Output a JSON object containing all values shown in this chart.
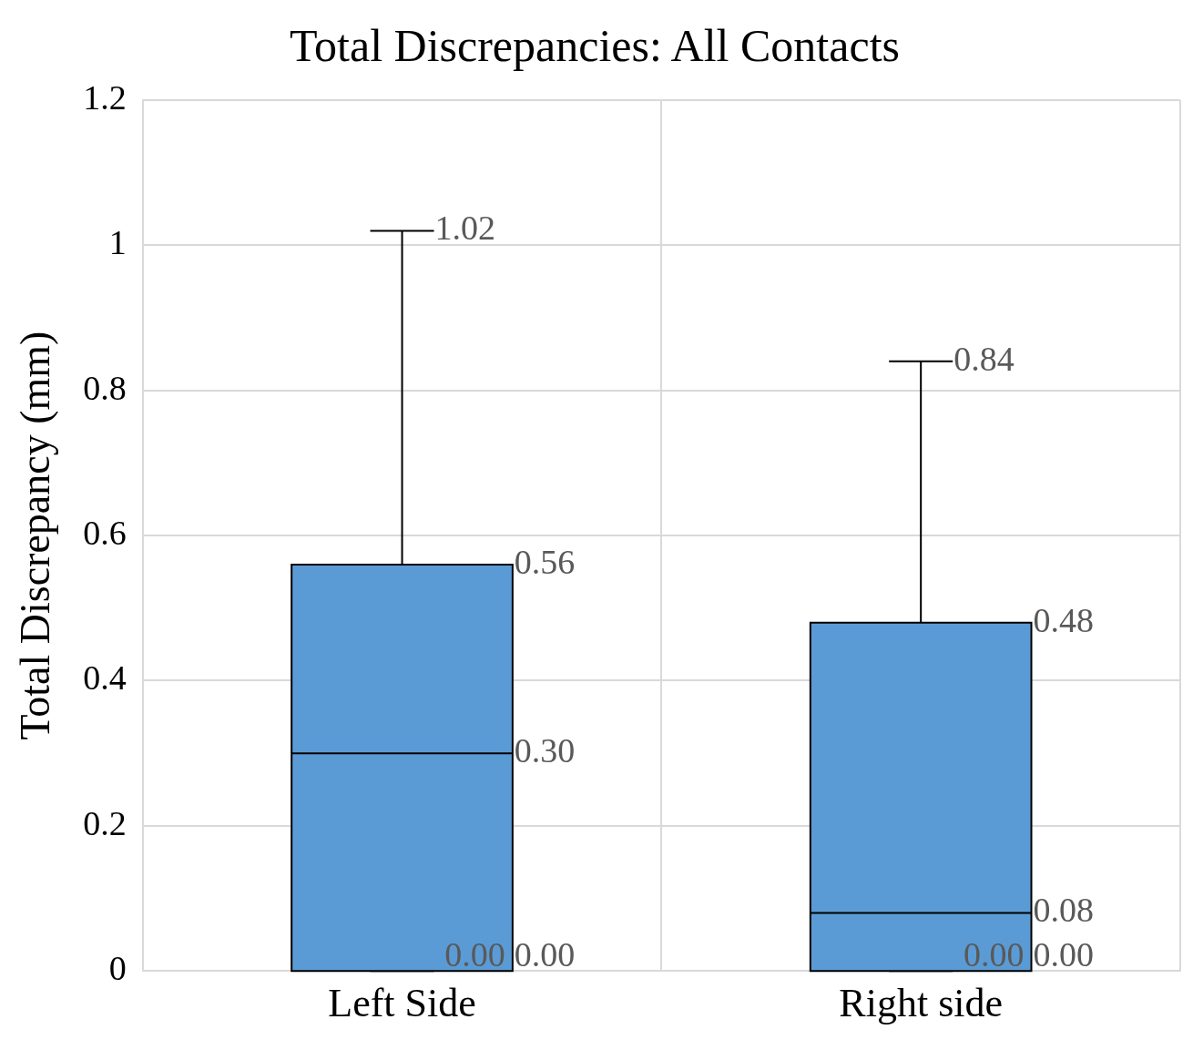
{
  "chart_data": {
    "type": "box",
    "title": "Total Discrepancies: All Contacts",
    "ylabel": "Total Discrepancy (mm)",
    "categories": [
      "Left Side",
      "Right side"
    ],
    "series": [
      {
        "color": "#5b9bd5",
        "boxes": [
          {
            "low": 0,
            "q1": 0,
            "median": 0.3,
            "q3": 0.56,
            "high": 1.02
          },
          {
            "low": 0,
            "q1": 0,
            "median": 0.08,
            "q3": 0.48,
            "high": 0.84
          }
        ]
      }
    ],
    "annotations": [
      "0.00",
      "0.00",
      "0.30",
      "0.56",
      "1.02",
      "0.00",
      "0.00",
      "0.08",
      "0.48",
      "0.84"
    ],
    "ylim": [
      0,
      1.2
    ],
    "yticks": [
      0,
      0.2,
      0.4,
      0.6,
      0.8,
      1,
      1.2
    ],
    "grid": true,
    "legend": false
  }
}
